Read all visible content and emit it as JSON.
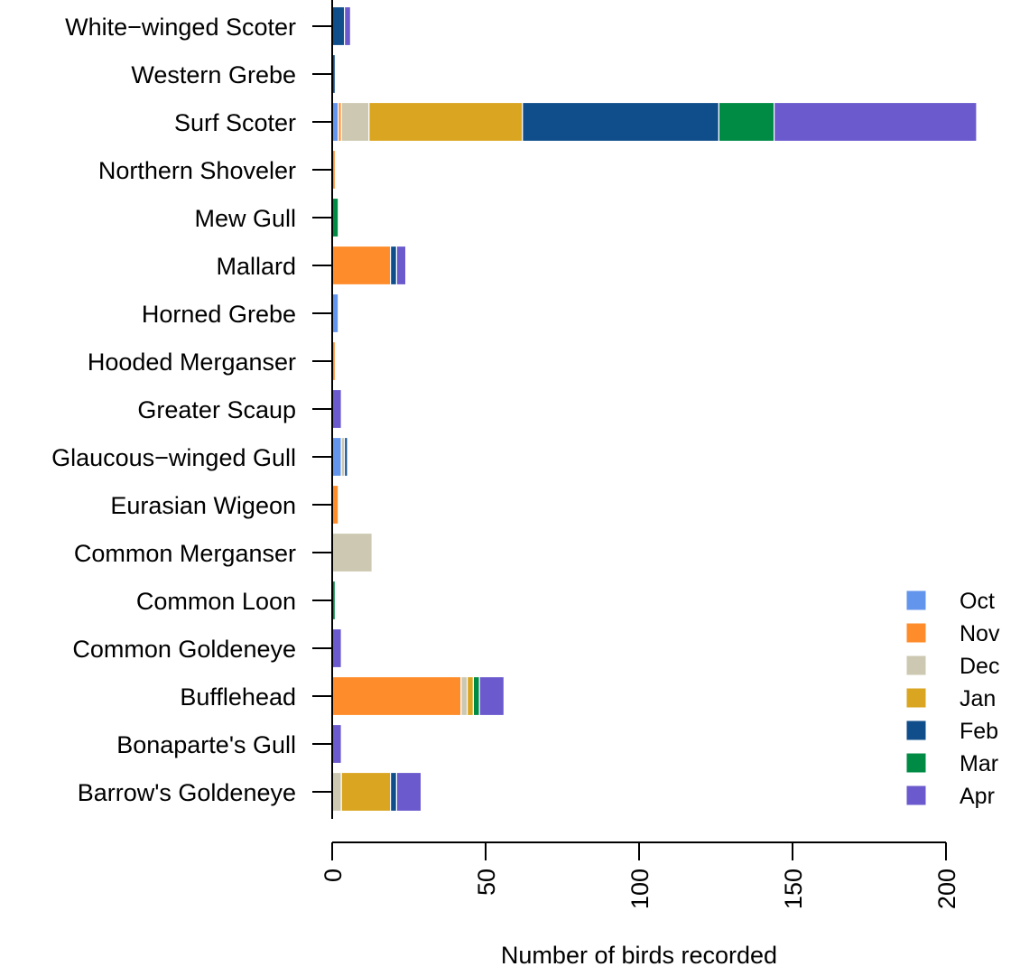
{
  "chart_data": {
    "type": "bar",
    "orientation": "horizontal",
    "stacked": true,
    "title": "",
    "xlabel": "Number of birds recorded",
    "ylabel": "",
    "xlim": [
      0,
      210
    ],
    "xticks": [
      0,
      50,
      100,
      150,
      200
    ],
    "grid": false,
    "legend_position": "bottom-right",
    "categories": [
      "Barrow's Goldeneye",
      "Bonaparte's Gull",
      "Bufflehead",
      "Common Goldeneye",
      "Common Loon",
      "Common Merganser",
      "Eurasian Wigeon",
      "Glaucous−winged Gull",
      "Greater Scaup",
      "Hooded Merganser",
      "Horned Grebe",
      "Mallard",
      "Mew Gull",
      "Northern Shoveler",
      "Surf Scoter",
      "Western Grebe",
      "White−winged Scoter"
    ],
    "series": [
      {
        "name": "Oct",
        "color": "#6495ED",
        "values": [
          0,
          0,
          0,
          0,
          0,
          0,
          0,
          3,
          0,
          0,
          2,
          0,
          0,
          0,
          2,
          0,
          0
        ]
      },
      {
        "name": "Nov",
        "color": "#FF8C2A",
        "values": [
          0,
          0,
          42,
          0,
          0,
          0,
          2,
          0,
          0,
          1,
          0,
          19,
          0,
          1,
          1,
          0,
          0
        ]
      },
      {
        "name": "Dec",
        "color": "#CDC8B1",
        "values": [
          3,
          0,
          2,
          0,
          0,
          13,
          0,
          1,
          0,
          0,
          0,
          0,
          0,
          0,
          9,
          0,
          0
        ]
      },
      {
        "name": "Jan",
        "color": "#DAA520",
        "values": [
          16,
          0,
          2,
          0,
          0,
          0,
          0,
          0,
          0,
          0,
          0,
          0,
          0,
          0,
          50,
          0,
          0
        ]
      },
      {
        "name": "Feb",
        "color": "#104E8B",
        "values": [
          2,
          0,
          0,
          0,
          0,
          0,
          0,
          1,
          0,
          0,
          0,
          2,
          0,
          0,
          64,
          1,
          4
        ]
      },
      {
        "name": "Mar",
        "color": "#008B45",
        "values": [
          0,
          0,
          2,
          0,
          1,
          0,
          0,
          0,
          0,
          0,
          0,
          0,
          2,
          0,
          18,
          0,
          0
        ]
      },
      {
        "name": "Apr",
        "color": "#6A5ACD",
        "values": [
          8,
          3,
          8,
          3,
          0,
          0,
          0,
          0,
          3,
          0,
          0,
          3,
          0,
          0,
          66,
          0,
          2
        ]
      }
    ]
  }
}
